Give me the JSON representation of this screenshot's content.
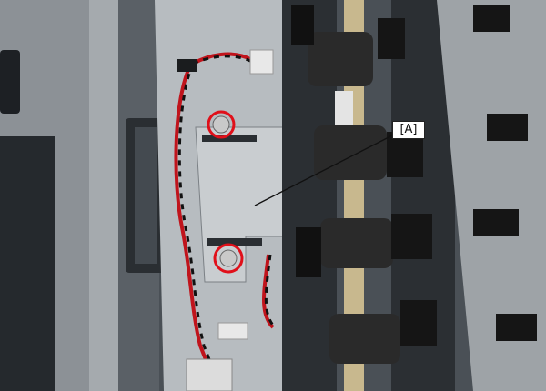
{
  "image": {
    "callout": {
      "label": "[A]",
      "color": "#111111"
    },
    "highlight_color": "#e0101a",
    "highlights": [
      {
        "name": "upper-screw"
      },
      {
        "name": "lower-screw"
      }
    ]
  }
}
